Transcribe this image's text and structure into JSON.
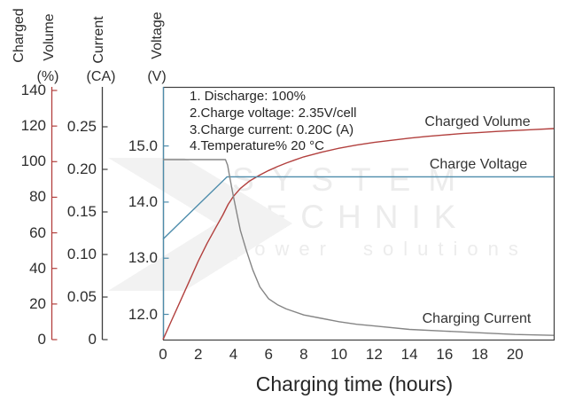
{
  "watermark": {
    "line1": "SYSTEM",
    "line2": "TECHNIK",
    "line3": "power solutions"
  },
  "chart_data": {
    "type": "line",
    "title": "",
    "xlabel": "Charging time (hours)",
    "xlim": [
      0,
      22.2
    ],
    "x_ticks": [
      0,
      2,
      4,
      6,
      8,
      10,
      12,
      14,
      16,
      18,
      20
    ],
    "grid": false,
    "legend_position": "inline-labels",
    "annotations": [
      "1. Discharge: 100%",
      "2.Charge voltage: 2.35V/cell",
      "3.Charge current: 0.20C (A)",
      "4.Temperature% 20 °C"
    ],
    "axes": [
      {
        "id": "percent",
        "title_words": [
          "Charged",
          "Volume"
        ],
        "unit": "(%)",
        "color": "#b2403e",
        "tick_labels": [
          "0",
          "20",
          "40",
          "60",
          "80",
          "100",
          "120",
          "140"
        ],
        "tick_values": [
          0,
          20,
          40,
          60,
          80,
          100,
          120,
          140
        ],
        "range": [
          0,
          142
        ]
      },
      {
        "id": "current",
        "title_words": [
          "Current"
        ],
        "unit": "(CA)",
        "color": "#3f3f3f",
        "tick_labels": [
          "0",
          "0.05",
          "0.10",
          "0.15",
          "0.20",
          "0.25"
        ],
        "tick_values": [
          0,
          0.05,
          0.1,
          0.15,
          0.2,
          0.25
        ],
        "range": [
          0,
          0.297
        ]
      },
      {
        "id": "voltage",
        "title_words": [
          "Voltage"
        ],
        "unit": "(V)",
        "color": "#4d8cab",
        "tick_labels": [
          "12.0",
          "13.0",
          "14.0",
          "15.0"
        ],
        "tick_values": [
          12,
          13,
          14,
          15
        ],
        "range": [
          11.55,
          16.05
        ]
      }
    ],
    "series": [
      {
        "name": "Charged Volume",
        "axis": "percent",
        "color": "#b2403e",
        "points": [
          [
            0,
            0
          ],
          [
            0.5,
            11
          ],
          [
            1,
            22
          ],
          [
            1.5,
            33
          ],
          [
            2,
            44
          ],
          [
            2.5,
            54
          ],
          [
            3,
            63
          ],
          [
            3.4,
            70
          ],
          [
            3.7,
            76
          ],
          [
            4,
            80.5
          ],
          [
            4.4,
            85
          ],
          [
            4.9,
            89
          ],
          [
            5.5,
            92.5
          ],
          [
            6,
            95
          ],
          [
            6.5,
            97.2
          ],
          [
            7,
            99.2
          ],
          [
            7.5,
            101
          ],
          [
            8,
            102.7
          ],
          [
            9,
            105.3
          ],
          [
            10,
            107.5
          ],
          [
            11,
            109.3
          ],
          [
            12,
            110.8
          ],
          [
            13,
            112
          ],
          [
            14,
            113.2
          ],
          [
            15,
            114.2
          ],
          [
            16,
            115
          ],
          [
            17,
            115.8
          ],
          [
            18,
            116.4
          ],
          [
            19,
            117
          ],
          [
            20,
            117.5
          ],
          [
            21,
            118
          ],
          [
            22.2,
            118.6
          ]
        ]
      },
      {
        "name": "Charge Voltage",
        "axis": "voltage",
        "color": "#4d8cab",
        "points": [
          [
            0,
            13.34
          ],
          [
            3.64,
            14.45
          ],
          [
            22.2,
            14.45
          ]
        ]
      },
      {
        "name": "Charging Current",
        "axis": "current",
        "color": "#858585",
        "points": [
          [
            0,
            0.2115
          ],
          [
            3.55,
            0.2115
          ],
          [
            3.67,
            0.205
          ],
          [
            3.8,
            0.19
          ],
          [
            4.0,
            0.168
          ],
          [
            4.2,
            0.148
          ],
          [
            4.4,
            0.128
          ],
          [
            4.73,
            0.105
          ],
          [
            5.1,
            0.082
          ],
          [
            5.5,
            0.062
          ],
          [
            6,
            0.048
          ],
          [
            6.5,
            0.041
          ],
          [
            7,
            0.036
          ],
          [
            8,
            0.029
          ],
          [
            9,
            0.025
          ],
          [
            10,
            0.021
          ],
          [
            11,
            0.018
          ],
          [
            12,
            0.016
          ],
          [
            14,
            0.012
          ],
          [
            16,
            0.01
          ],
          [
            18,
            0.008
          ],
          [
            20,
            0.006
          ],
          [
            22.2,
            0.005
          ]
        ]
      }
    ]
  }
}
